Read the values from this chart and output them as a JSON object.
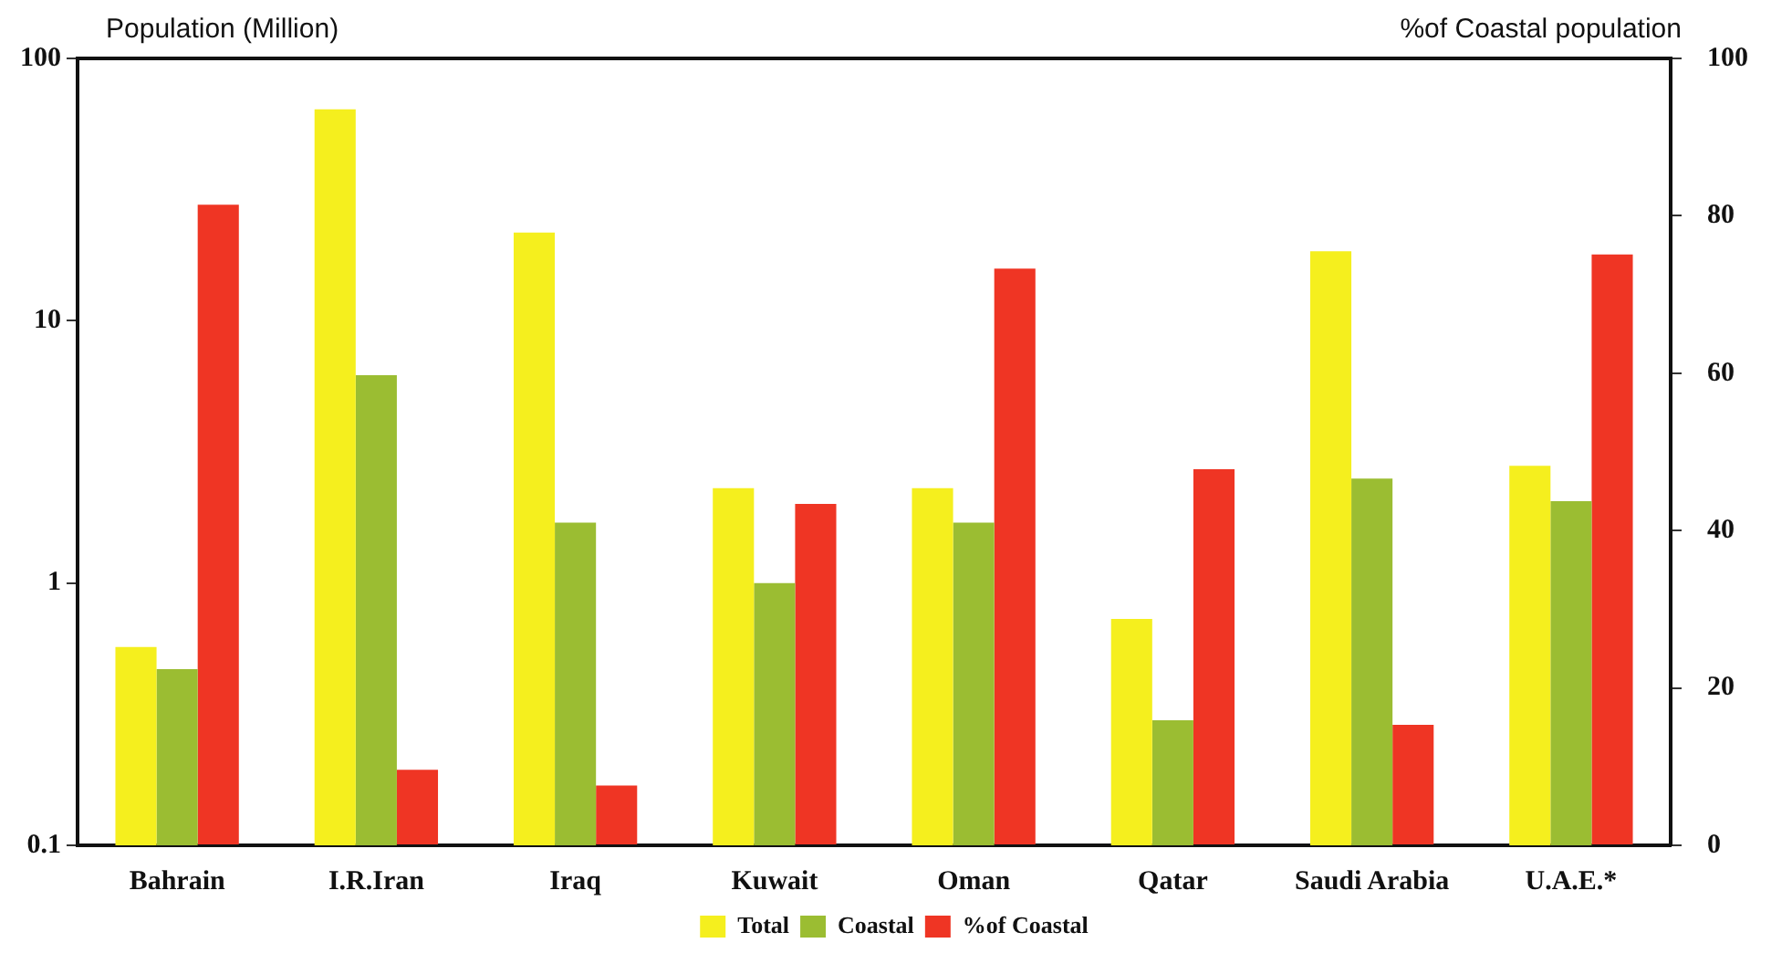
{
  "chart_data": {
    "type": "bar",
    "ylabel": "Population (Million)",
    "y2label": "%of Coastal population",
    "categories": [
      "Bahrain",
      "I.R.Iran",
      "Iraq",
      "Kuwait",
      "Oman",
      "Qatar",
      "Saudi Arabia",
      "U.A.E.*"
    ],
    "series": [
      {
        "name": "Total",
        "color": "#f5ef1e",
        "values": [
          0.57,
          64,
          21.7,
          2.3,
          2.3,
          0.73,
          18.4,
          2.8
        ]
      },
      {
        "name": "Coastal",
        "color": "#9bbd32",
        "values": [
          0.47,
          6.2,
          1.7,
          1.0,
          1.7,
          0.3,
          2.5,
          2.05
        ]
      },
      {
        "name": "%of Coastal",
        "color": "#ef3524",
        "axis": "y2",
        "values": [
          81.4,
          9.6,
          7.6,
          43.4,
          73.3,
          47.8,
          15.3,
          75.1
        ]
      }
    ],
    "log": "y",
    "ylim": [
      0.1,
      100
    ],
    "yticks": [
      0.1,
      1,
      10,
      100
    ],
    "y2lim": [
      0,
      100
    ],
    "y2ticks": [
      0,
      20,
      40,
      60,
      80,
      100
    ],
    "grid": false,
    "legend": "bottom"
  }
}
